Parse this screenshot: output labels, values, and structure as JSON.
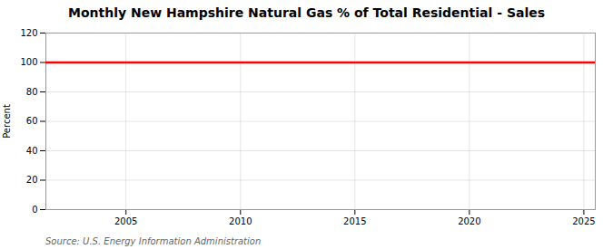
{
  "chart_data": {
    "type": "hline",
    "title": "Monthly New Hampshire Natural Gas % of Total Residential - Sales",
    "ylabel": "Percent",
    "caption": "Source: U.S. Energy Information Administration",
    "values": [
      100
    ],
    "color": "#ff0000",
    "xlim": [
      2001.5,
      2025.5
    ],
    "xticks": [
      2005,
      2010,
      2015,
      2020,
      2025
    ],
    "ylim": [
      0,
      120
    ],
    "yticks": [
      0,
      20,
      40,
      60,
      80,
      100,
      120
    ],
    "grid": true
  }
}
